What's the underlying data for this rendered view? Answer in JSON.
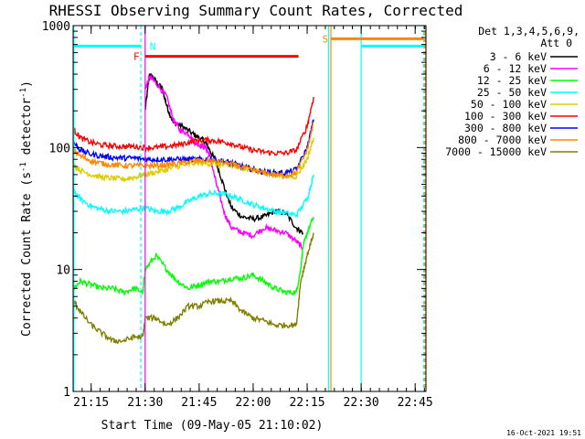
{
  "chart_data": {
    "type": "line",
    "title": "RHESSI Observing Summary Count Rates, Corrected",
    "xlabel": "Start Time (09-May-05 21:10:02)",
    "ylabel": "Corrected Count Rate (s",
    "ylabel_sup1": "-1",
    "ylabel_mid": " detector",
    "ylabel_sup2": "-1",
    "ylabel_end": ")",
    "y_scale": "log",
    "ylim": [
      1,
      1000
    ],
    "xlim_minutes": [
      21.1666,
      22.8
    ],
    "x_ticks": [
      {
        "label": "21:15",
        "t": 21.25
      },
      {
        "label": "21:30",
        "t": 21.5
      },
      {
        "label": "21:45",
        "t": 21.75
      },
      {
        "label": "22:00",
        "t": 22.0
      },
      {
        "label": "22:15",
        "t": 22.25
      },
      {
        "label": "22:30",
        "t": 22.5
      },
      {
        "label": "22:45",
        "t": 22.75
      }
    ],
    "y_ticks": [
      {
        "label": "1",
        "v": 1
      },
      {
        "label": "10",
        "v": 10
      },
      {
        "label": "100",
        "v": 100
      },
      {
        "label": "1000",
        "v": 1000
      }
    ],
    "legend_header_1": "Det 1,3,4,5,6,9,",
    "legend_header_2": "Att 0",
    "legend_placement": "right",
    "series": [
      {
        "name": "3 - 6 keV",
        "color": "#000000",
        "x": [
          21.5,
          21.52,
          21.55,
          21.58,
          21.6,
          21.63,
          21.67,
          21.72,
          21.75,
          21.78,
          21.8,
          21.83,
          21.87,
          21.9,
          21.95,
          22.0,
          22.05,
          22.1,
          22.15,
          22.2,
          22.23
        ],
        "y": [
          200,
          400,
          350,
          300,
          220,
          160,
          150,
          130,
          120,
          110,
          95,
          75,
          45,
          32,
          27,
          26,
          27,
          30,
          29,
          22,
          20
        ]
      },
      {
        "name": "6 - 12 keV",
        "color": "#ff00ff",
        "x": [
          21.5,
          21.52,
          21.55,
          21.6,
          21.63,
          21.66,
          21.7,
          21.73,
          21.75,
          21.78,
          21.8,
          21.83,
          21.87,
          21.9,
          21.95,
          22.0,
          22.05,
          22.1,
          22.15,
          22.2,
          22.23
        ],
        "y": [
          300,
          380,
          340,
          260,
          170,
          140,
          130,
          110,
          105,
          100,
          85,
          50,
          28,
          22,
          20,
          19,
          22,
          21,
          20,
          17,
          15
        ]
      },
      {
        "name": "12 - 25 keV",
        "color": "#00ff00",
        "x": [
          21.17,
          21.2,
          21.25,
          21.3,
          21.35,
          21.4,
          21.45,
          21.49,
          21.5,
          21.55,
          21.6,
          21.65,
          21.7,
          21.75,
          21.8,
          21.85,
          21.9,
          21.95,
          22.0,
          22.05,
          22.1,
          22.15,
          22.2,
          22.22,
          22.23,
          22.25,
          22.28
        ],
        "y": [
          7,
          8,
          7.5,
          7,
          7,
          6.5,
          7,
          6.5,
          10,
          13,
          10,
          8,
          7,
          7.5,
          8,
          8,
          8.5,
          8.5,
          9,
          8,
          7,
          6.5,
          6.5,
          10,
          15,
          20,
          27
        ]
      },
      {
        "name": "25 - 50 keV",
        "color": "#00ffff",
        "x": [
          21.17,
          21.2,
          21.25,
          21.3,
          21.35,
          21.4,
          21.45,
          21.5,
          21.55,
          21.6,
          21.65,
          21.7,
          21.75,
          21.8,
          21.85,
          21.9,
          21.95,
          22.0,
          22.05,
          22.1,
          22.15,
          22.2,
          22.25,
          22.28
        ],
        "y": [
          43,
          38,
          33,
          31,
          30,
          30,
          31,
          32,
          30,
          30,
          32,
          36,
          40,
          42,
          42,
          40,
          37,
          34,
          32,
          30,
          29,
          28,
          38,
          60
        ]
      },
      {
        "name": "50 - 100 keV",
        "color": "#ddcc00",
        "x": [
          21.17,
          21.2,
          21.25,
          21.3,
          21.35,
          21.4,
          21.45,
          21.5,
          21.55,
          21.6,
          21.65,
          21.7,
          21.75,
          21.8,
          21.85,
          21.9,
          21.95,
          22.0,
          22.05,
          22.1,
          22.15,
          22.2,
          22.25,
          22.28
        ],
        "y": [
          72,
          65,
          60,
          57,
          56,
          55,
          57,
          60,
          63,
          66,
          70,
          73,
          75,
          74,
          72,
          70,
          68,
          65,
          62,
          60,
          58,
          58,
          80,
          120
        ]
      },
      {
        "name": "100 - 300 keV",
        "color": "#ff0000",
        "x": [
          21.17,
          21.2,
          21.25,
          21.3,
          21.35,
          21.4,
          21.45,
          21.5,
          21.55,
          21.6,
          21.65,
          21.7,
          21.75,
          21.8,
          21.85,
          21.9,
          21.95,
          22.0,
          22.05,
          22.1,
          22.15,
          22.2,
          22.25,
          22.28
        ],
        "y": [
          140,
          120,
          110,
          105,
          103,
          102,
          102,
          100,
          100,
          102,
          105,
          110,
          115,
          115,
          112,
          108,
          100,
          95,
          92,
          90,
          90,
          95,
          150,
          260
        ]
      },
      {
        "name": "300 - 800 keV",
        "color": "#0000ff",
        "x": [
          21.17,
          21.2,
          21.25,
          21.3,
          21.35,
          21.4,
          21.45,
          21.5,
          21.55,
          21.6,
          21.65,
          21.7,
          21.75,
          21.8,
          21.85,
          21.9,
          21.95,
          22.0,
          22.05,
          22.1,
          22.15,
          22.2,
          22.25,
          22.28
        ],
        "y": [
          110,
          95,
          88,
          85,
          83,
          82,
          82,
          80,
          80,
          80,
          80,
          80,
          80,
          80,
          78,
          75,
          70,
          66,
          63,
          62,
          62,
          66,
          100,
          170
        ]
      },
      {
        "name": "800 - 7000 keV",
        "color": "#ff8800",
        "x": [
          21.17,
          21.2,
          21.25,
          21.3,
          21.35,
          21.4,
          21.45,
          21.5,
          21.55,
          21.6,
          21.65,
          21.7,
          21.75,
          21.8,
          21.85,
          21.9,
          21.95,
          22.0,
          22.05,
          22.1,
          22.15,
          22.2,
          22.25,
          22.28
        ],
        "y": [
          95,
          85,
          78,
          74,
          72,
          71,
          71,
          71,
          71,
          72,
          74,
          76,
          78,
          78,
          76,
          73,
          69,
          65,
          62,
          60,
          59,
          62,
          95,
          160
        ]
      },
      {
        "name": "7000 - 15000 keV",
        "color": "#808000",
        "x": [
          21.17,
          21.2,
          21.25,
          21.3,
          21.35,
          21.4,
          21.45,
          21.49,
          21.5,
          21.55,
          21.6,
          21.65,
          21.7,
          21.75,
          21.8,
          21.85,
          21.9,
          21.95,
          22.0,
          22.05,
          22.1,
          22.15,
          22.2,
          22.22,
          22.25,
          22.28
        ],
        "y": [
          5.5,
          4.5,
          3.5,
          3,
          2.6,
          2.6,
          2.8,
          2.8,
          4,
          4,
          3.5,
          4,
          5,
          5,
          5.5,
          5.5,
          5.5,
          4.5,
          4,
          3.8,
          3.5,
          3.5,
          3.5,
          8,
          13,
          20
        ]
      }
    ],
    "attenuator_level_lines": [
      {
        "color": "#00ffff",
        "t1": 21.17,
        "t2": 21.48,
        "v": 680
      },
      {
        "color": "#00ffff",
        "t1": 22.5,
        "t2": 22.79,
        "v": 680
      },
      {
        "color": "#ff8800",
        "t1": 22.36,
        "t2": 22.79,
        "v": 780
      },
      {
        "color": "#ff0000",
        "t1": 21.5,
        "t2": 22.21,
        "v": 560
      }
    ],
    "annotations": [
      {
        "text": "N",
        "color": "#00ffff",
        "t": 21.5
      },
      {
        "text": "F",
        "color": "#ff0000",
        "t": 21.48
      },
      {
        "text": "S",
        "color": "#ff8800",
        "t": 22.35
      }
    ],
    "vertical_markers": [
      {
        "color": "#ff00ff",
        "t": 21.5,
        "style": "solid"
      },
      {
        "color": "#00ffff",
        "t": 21.48,
        "style": "dash"
      },
      {
        "color": "#ff8800",
        "t": 22.36,
        "style": "solid"
      },
      {
        "color": "#00ffff",
        "t": 22.35,
        "style": "solid"
      },
      {
        "color": "#00ffff",
        "t": 22.5,
        "style": "solid"
      },
      {
        "color": "#00ffff",
        "t": 22.79,
        "style": "dash"
      },
      {
        "color": "#ff8800",
        "t": 22.795,
        "style": "dash"
      },
      {
        "color": "#00ffff",
        "t": 21.17,
        "style": "solid"
      }
    ],
    "grid": false,
    "timestamp": "16-Oct-2021 19:51"
  }
}
